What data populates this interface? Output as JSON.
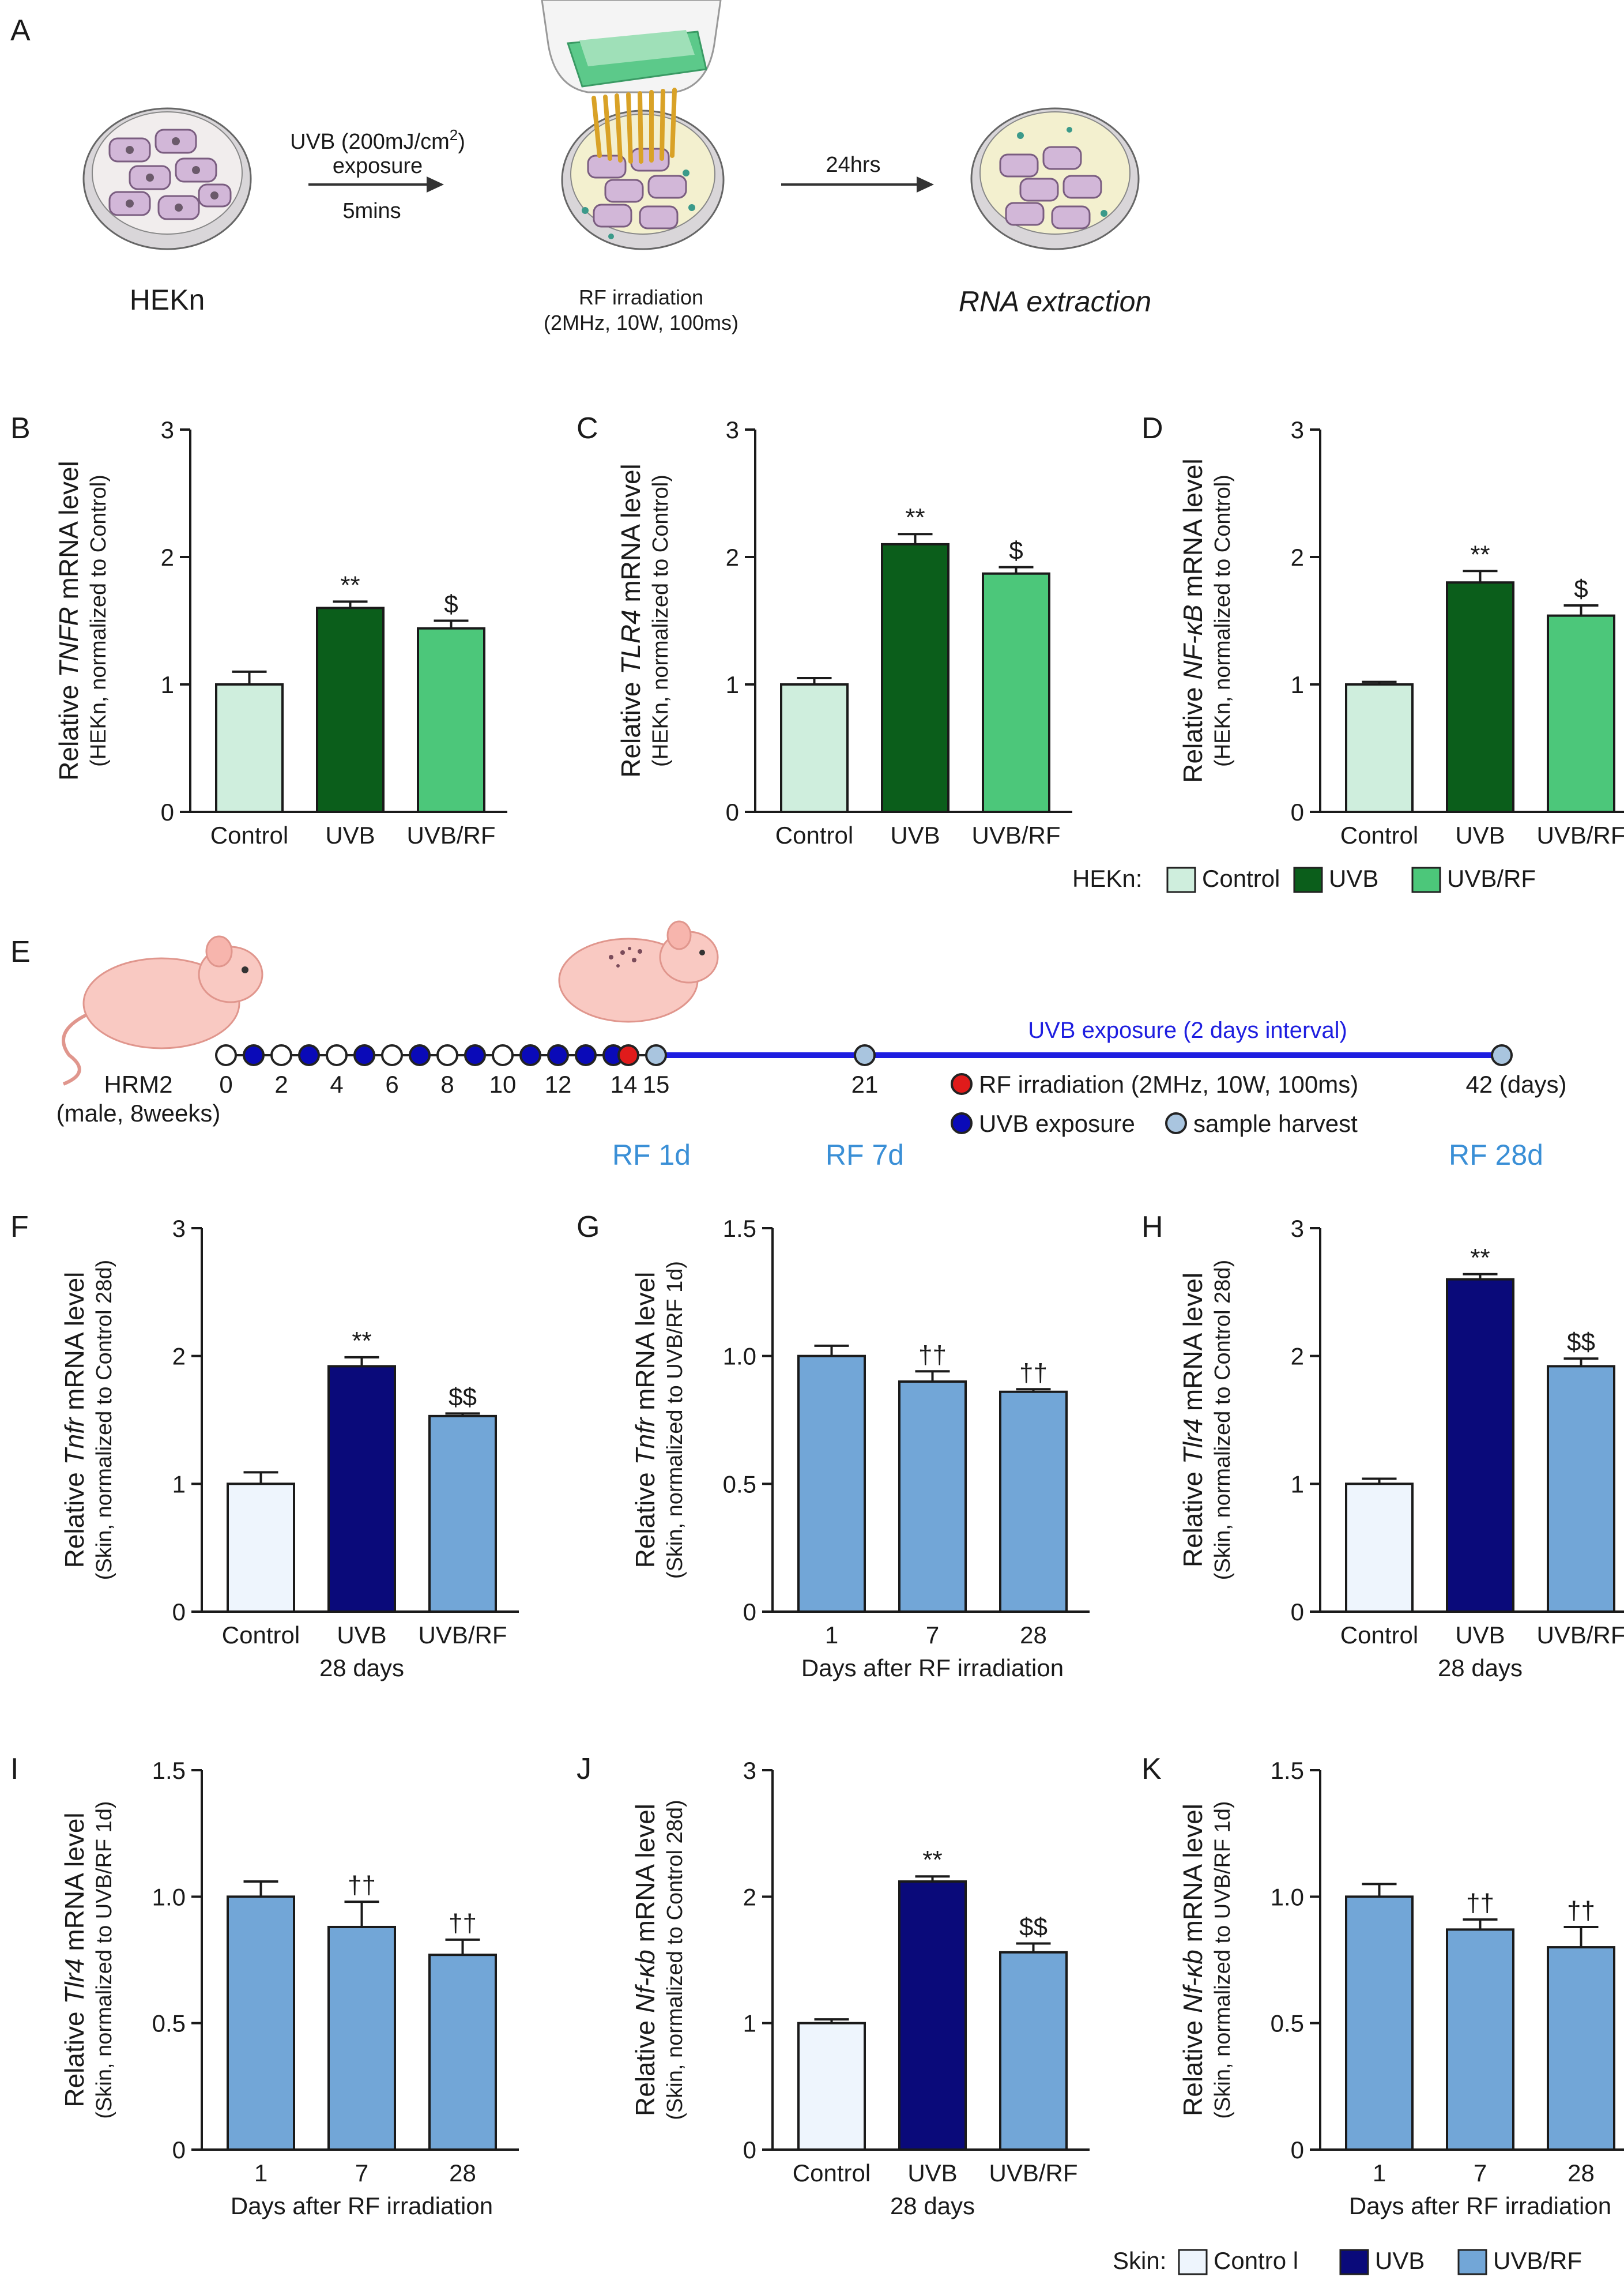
{
  "colors": {
    "hekn_control": "#cfeedd",
    "hekn_uvb": "#0b5e1b",
    "hekn_uvbrf": "#4cc77a",
    "skin_control": "#eef5fd",
    "skin_uvb": "#0a0a7a",
    "skin_uvbrf": "#72a6d7",
    "uvb_dot": "#0a0ab8",
    "rf_dot": "#e01b1b",
    "harvest_dot": "#a9c5df",
    "timeline_line": "#1e1ee0",
    "rf_label": "#3a8fd6"
  },
  "panel_a": {
    "letter": "A",
    "cells_label": "HEKn",
    "uvb_line1": "UVB (200mJ/cm",
    "uvb_sup": "2",
    "uvb_line1_end": ")",
    "uvb_line2": "exposure",
    "uvb_time": "5mins",
    "rf_line1": "RF irradiation",
    "rf_line2": "(2MHz, 10W, 100ms)",
    "wait": "24hrs",
    "result": "RNA extraction"
  },
  "panel_e": {
    "letter": "E",
    "mouse_label1": "HRM2",
    "mouse_label2": "(male, 8weeks)",
    "day_labels": [
      "0",
      "2",
      "4",
      "6",
      "8",
      "10",
      "12",
      "14",
      "15",
      "21",
      "42 (days)"
    ],
    "uvb_note": "UVB exposure (2 days interval)",
    "harvest_labels": [
      "RF 1d",
      "RF 7d",
      "RF 28d"
    ],
    "legend": [
      "RF irradiation (2MHz, 10W, 100ms)",
      "UVB exposure",
      "sample harvest"
    ]
  },
  "legend_hekn": {
    "title": "HEKn:",
    "items": [
      "Control",
      "UVB",
      "UVB/RF"
    ]
  },
  "legend_skin": {
    "title": "Skin:",
    "items": [
      "Contro l",
      "UVB",
      "UVB/RF"
    ]
  },
  "chart_data": [
    {
      "panel": "B",
      "type": "bar",
      "ylabel_pre": "Relative ",
      "ylabel_gene": "TNFR",
      "ylabel_post": " mRNA level",
      "ylabel2": "(HEKn, normalized to Control)",
      "categories": [
        "Control",
        "UVB",
        "UVB/RF"
      ],
      "values": [
        1.0,
        1.6,
        1.44
      ],
      "errors": [
        0.1,
        0.05,
        0.06
      ],
      "significance": [
        "",
        "**",
        "$"
      ],
      "ylim": [
        0,
        3
      ],
      "yticks": [
        "0",
        "1",
        "2",
        "3"
      ],
      "xlabel": "",
      "palette": "hekn"
    },
    {
      "panel": "C",
      "type": "bar",
      "ylabel_pre": "Relative ",
      "ylabel_gene": "TLR4",
      "ylabel_post": " mRNA level",
      "ylabel2": "(HEKn, normalized to Control)",
      "categories": [
        "Control",
        "UVB",
        "UVB/RF"
      ],
      "values": [
        1.0,
        2.1,
        1.87
      ],
      "errors": [
        0.05,
        0.08,
        0.05
      ],
      "significance": [
        "",
        "**",
        "$"
      ],
      "ylim": [
        0,
        3
      ],
      "yticks": [
        "0",
        "1",
        "2",
        "3"
      ],
      "xlabel": "",
      "palette": "hekn"
    },
    {
      "panel": "D",
      "type": "bar",
      "ylabel_pre": "Relative ",
      "ylabel_gene": "NF-κB",
      "ylabel_post": " mRNA level",
      "ylabel2": "(HEKn, normalized to Control)",
      "categories": [
        "Control",
        "UVB",
        "UVB/RF"
      ],
      "values": [
        1.0,
        1.8,
        1.54
      ],
      "errors": [
        0.02,
        0.09,
        0.08
      ],
      "significance": [
        "",
        "**",
        "$"
      ],
      "ylim": [
        0,
        3
      ],
      "yticks": [
        "0",
        "1",
        "2",
        "3"
      ],
      "xlabel": "",
      "palette": "hekn"
    },
    {
      "panel": "F",
      "type": "bar",
      "ylabel_pre": "Relative ",
      "ylabel_gene": "Tnfr",
      "ylabel_post": " mRNA level",
      "ylabel2": "(Skin, normalized to Control 28d)",
      "categories": [
        "Control",
        "UVB",
        "UVB/RF"
      ],
      "values": [
        1.0,
        1.92,
        1.53
      ],
      "errors": [
        0.09,
        0.07,
        0.02
      ],
      "significance": [
        "",
        "**",
        "$$"
      ],
      "ylim": [
        0,
        3
      ],
      "yticks": [
        "0",
        "1",
        "2",
        "3"
      ],
      "xlabel": "28 days",
      "palette": "skin"
    },
    {
      "panel": "G",
      "type": "bar",
      "ylabel_pre": "Relative ",
      "ylabel_gene": "Tnfr",
      "ylabel_post": " mRNA level",
      "ylabel2": "(Skin, normalized to UVB/RF 1d)",
      "categories": [
        "1",
        "7",
        "28"
      ],
      "values": [
        1.0,
        0.9,
        0.86
      ],
      "errors": [
        0.04,
        0.04,
        0.01
      ],
      "significance": [
        "",
        "††",
        "††"
      ],
      "ylim": [
        0,
        1.5
      ],
      "yticks": [
        "0",
        "0.5",
        "1.0",
        "1.5"
      ],
      "xlabel": "Days after RF irradiation",
      "palette": "skin_rf"
    },
    {
      "panel": "H",
      "type": "bar",
      "ylabel_pre": "Relative ",
      "ylabel_gene": "Tlr4",
      "ylabel_post": " mRNA level",
      "ylabel2": "(Skin, normalized to Control 28d)",
      "categories": [
        "Control",
        "UVB",
        "UVB/RF"
      ],
      "values": [
        1.0,
        2.6,
        1.92
      ],
      "errors": [
        0.04,
        0.04,
        0.06
      ],
      "significance": [
        "",
        "**",
        "$$"
      ],
      "ylim": [
        0,
        3
      ],
      "yticks": [
        "0",
        "1",
        "2",
        "3"
      ],
      "xlabel": "28 days",
      "palette": "skin"
    },
    {
      "panel": "I",
      "type": "bar",
      "ylabel_pre": "Relative ",
      "ylabel_gene": "Tlr4",
      "ylabel_post": " mRNA level",
      "ylabel2": "(Skin, normalized to UVB/RF 1d)",
      "categories": [
        "1",
        "7",
        "28"
      ],
      "values": [
        1.0,
        0.88,
        0.77
      ],
      "errors": [
        0.06,
        0.1,
        0.06
      ],
      "significance": [
        "",
        "††",
        "††"
      ],
      "ylim": [
        0,
        1.5
      ],
      "yticks": [
        "0",
        "0.5",
        "1.0",
        "1.5"
      ],
      "xlabel": "Days after RF irradiation",
      "palette": "skin_rf"
    },
    {
      "panel": "J",
      "type": "bar",
      "ylabel_pre": "Relative ",
      "ylabel_gene": "Nf-κb",
      "ylabel_post": " mRNA level",
      "ylabel2": "(Skin, normalized to Control 28d)",
      "categories": [
        "Control",
        "UVB",
        "UVB/RF"
      ],
      "values": [
        1.0,
        2.12,
        1.56
      ],
      "errors": [
        0.03,
        0.04,
        0.07
      ],
      "significance": [
        "",
        "**",
        "$$"
      ],
      "ylim": [
        0,
        3
      ],
      "yticks": [
        "0",
        "1",
        "2",
        "3"
      ],
      "xlabel": "28 days",
      "palette": "skin"
    },
    {
      "panel": "K",
      "type": "bar",
      "ylabel_pre": "Relative ",
      "ylabel_gene": "Nf-κb",
      "ylabel_post": " mRNA level",
      "ylabel2": "(Skin, normalized to UVB/RF 1d)",
      "categories": [
        "1",
        "7",
        "28"
      ],
      "values": [
        1.0,
        0.87,
        0.8
      ],
      "errors": [
        0.05,
        0.04,
        0.08
      ],
      "significance": [
        "",
        "††",
        "††"
      ],
      "ylim": [
        0,
        1.5
      ],
      "yticks": [
        "0",
        "0.5",
        "1.0",
        "1.5"
      ],
      "xlabel": "Days after RF irradiation",
      "palette": "skin_rf"
    }
  ]
}
